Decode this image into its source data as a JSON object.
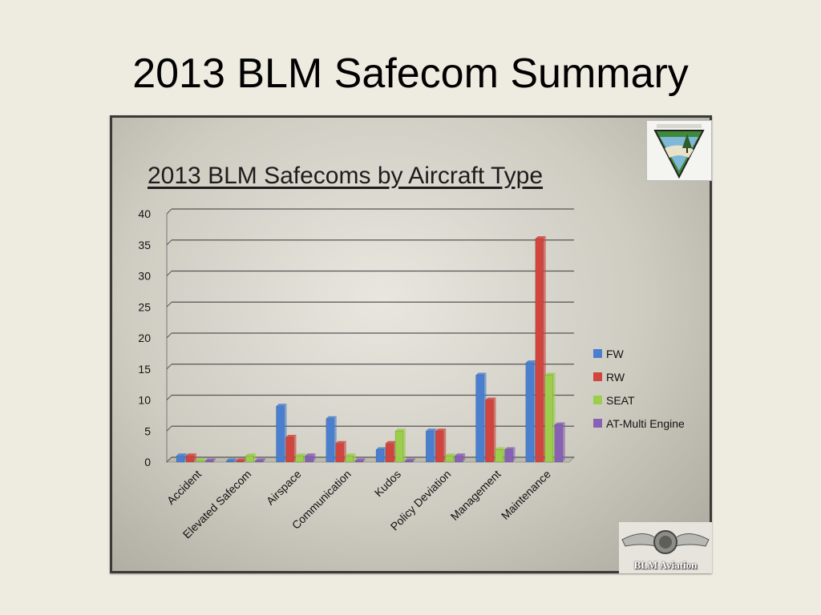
{
  "slide": {
    "title": "2013 BLM Safecom Summary"
  },
  "logos": {
    "aviation_text": "BLM Aviation"
  },
  "colors": {
    "FW": "#4a7fcf",
    "RW": "#d0463f",
    "SEAT": "#9ccd4c",
    "AT-Multi Engine": "#8762b4"
  },
  "chart_data": {
    "type": "bar",
    "title": "2013 BLM Safecoms by Aircraft Type",
    "xlabel": "",
    "ylabel": "",
    "ylim": [
      0,
      40
    ],
    "yticks": [
      "0",
      "5",
      "10",
      "15",
      "20",
      "25",
      "30",
      "35",
      "40"
    ],
    "grid": true,
    "legend": "right",
    "categories": [
      "Accident",
      "Elevated Safecom",
      "Airspace",
      "Communication",
      "Kudos",
      "Policy Deviation",
      "Management",
      "Maintenance"
    ],
    "series": [
      {
        "name": "FW",
        "values": [
          1,
          0,
          9,
          7,
          2,
          5,
          14,
          16
        ]
      },
      {
        "name": "RW",
        "values": [
          1,
          0,
          4,
          3,
          3,
          5,
          10,
          36
        ]
      },
      {
        "name": "SEAT",
        "values": [
          0,
          1,
          1,
          1,
          5,
          1,
          2,
          14
        ]
      },
      {
        "name": "AT-Multi Engine",
        "values": [
          0,
          0,
          1,
          0,
          0,
          1,
          2,
          6
        ]
      }
    ]
  }
}
